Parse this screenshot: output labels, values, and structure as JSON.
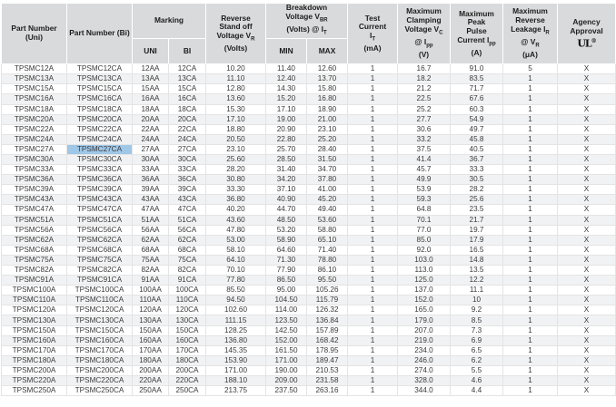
{
  "headers": {
    "part_uni": "Part Number (Uni)",
    "part_bi": "Part Number (Bi)",
    "marking": "Marking",
    "marking_uni": "UNI",
    "marking_bi": "BI",
    "reverse_standoff": [
      "Reverse",
      "Stand off",
      "Voltage V",
      "R",
      "(Volts)"
    ],
    "breakdown": [
      "Breakdown",
      "Voltage V",
      "BR",
      "(Volts) @ I",
      "T"
    ],
    "breakdown_min": "MIN",
    "breakdown_max": "MAX",
    "test_current": [
      "Test",
      "Current",
      "I",
      "T",
      "(mA)"
    ],
    "clamping": [
      "Maximum",
      "Clamping",
      "Voltage V",
      "C",
      "@ I",
      "pp",
      "(V)"
    ],
    "peak_pulse": [
      "Maximum",
      "Peak",
      "Pulse",
      "Current I",
      "pp",
      "(A)"
    ],
    "leakage": [
      "Maximum",
      "Reverse",
      "Leakage I",
      "R",
      "@ V",
      "R",
      "(μA)"
    ],
    "agency": "Agency Approval",
    "agency_logo": "UL",
    "agency_logo_mark": "®"
  },
  "highlighted_cell": "TPSMC27CA",
  "rows": [
    [
      "TPSMC12A",
      "TPSMC12CA",
      "12AA",
      "12CA",
      "10.20",
      "11.40",
      "12.60",
      "1",
      "16.7",
      "91.0",
      "5",
      "X"
    ],
    [
      "TPSMC13A",
      "TPSMC13CA",
      "13AA",
      "13CA",
      "11.10",
      "12.40",
      "13.70",
      "1",
      "18.2",
      "83.5",
      "1",
      "X"
    ],
    [
      "TPSMC15A",
      "TPSMC15CA",
      "15AA",
      "15CA",
      "12.80",
      "14.30",
      "15.80",
      "1",
      "21.2",
      "71.7",
      "1",
      "X"
    ],
    [
      "TPSMC16A",
      "TPSMC16CA",
      "16AA",
      "16CA",
      "13.60",
      "15.20",
      "16.80",
      "1",
      "22.5",
      "67.6",
      "1",
      "X"
    ],
    [
      "TPSMC18A",
      "TPSMC18CA",
      "18AA",
      "18CA",
      "15.30",
      "17.10",
      "18.90",
      "1",
      "25.2",
      "60.3",
      "1",
      "X"
    ],
    [
      "TPSMC20A",
      "TPSMC20CA",
      "20AA",
      "20CA",
      "17.10",
      "19.00",
      "21.00",
      "1",
      "27.7",
      "54.9",
      "1",
      "X"
    ],
    [
      "TPSMC22A",
      "TPSMC22CA",
      "22AA",
      "22CA",
      "18.80",
      "20.90",
      "23.10",
      "1",
      "30.6",
      "49.7",
      "1",
      "X"
    ],
    [
      "TPSMC24A",
      "TPSMC24CA",
      "24AA",
      "24CA",
      "20.50",
      "22.80",
      "25.20",
      "1",
      "33.2",
      "45.8",
      "1",
      "X"
    ],
    [
      "TPSMC27A",
      "TPSMC27CA",
      "27AA",
      "27CA",
      "23.10",
      "25.70",
      "28.40",
      "1",
      "37.5",
      "40.5",
      "1",
      "X"
    ],
    [
      "TPSMC30A",
      "TPSMC30CA",
      "30AA",
      "30CA",
      "25.60",
      "28.50",
      "31.50",
      "1",
      "41.4",
      "36.7",
      "1",
      "X"
    ],
    [
      "TPSMC33A",
      "TPSMC33CA",
      "33AA",
      "33CA",
      "28.20",
      "31.40",
      "34.70",
      "1",
      "45.7",
      "33.3",
      "1",
      "X"
    ],
    [
      "TPSMC36A",
      "TPSMC36CA",
      "36AA",
      "36CA",
      "30.80",
      "34.20",
      "37.80",
      "1",
      "49.9",
      "30.5",
      "1",
      "X"
    ],
    [
      "TPSMC39A",
      "TPSMC39CA",
      "39AA",
      "39CA",
      "33.30",
      "37.10",
      "41.00",
      "1",
      "53.9",
      "28.2",
      "1",
      "X"
    ],
    [
      "TPSMC43A",
      "TPSMC43CA",
      "43AA",
      "43CA",
      "36.80",
      "40.90",
      "45.20",
      "1",
      "59.3",
      "25.6",
      "1",
      "X"
    ],
    [
      "TPSMC47A",
      "TPSMC47CA",
      "47AA",
      "47CA",
      "40.20",
      "44.70",
      "49.40",
      "1",
      "64.8",
      "23.5",
      "1",
      "X"
    ],
    [
      "TPSMC51A",
      "TPSMC51CA",
      "51AA",
      "51CA",
      "43.60",
      "48.50",
      "53.60",
      "1",
      "70.1",
      "21.7",
      "1",
      "X"
    ],
    [
      "TPSMC56A",
      "TPSMC56CA",
      "56AA",
      "56CA",
      "47.80",
      "53.20",
      "58.80",
      "1",
      "77.0",
      "19.7",
      "1",
      "X"
    ],
    [
      "TPSMC62A",
      "TPSMC62CA",
      "62AA",
      "62CA",
      "53.00",
      "58.90",
      "65.10",
      "1",
      "85.0",
      "17.9",
      "1",
      "X"
    ],
    [
      "TPSMC68A",
      "TPSMC68CA",
      "68AA",
      "68CA",
      "58.10",
      "64.60",
      "71.40",
      "1",
      "92.0",
      "16.5",
      "1",
      "X"
    ],
    [
      "TPSMC75A",
      "TPSMC75CA",
      "75AA",
      "75CA",
      "64.10",
      "71.30",
      "78.80",
      "1",
      "103.0",
      "14.8",
      "1",
      "X"
    ],
    [
      "TPSMC82A",
      "TPSMC82CA",
      "82AA",
      "82CA",
      "70.10",
      "77.90",
      "86.10",
      "1",
      "113.0",
      "13.5",
      "1",
      "X"
    ],
    [
      "TPSMC91A",
      "TPSMC91CA",
      "91AA",
      "91CA",
      "77.80",
      "86.50",
      "95.50",
      "1",
      "125.0",
      "12.2",
      "1",
      "X"
    ],
    [
      "TPSMC100A",
      "TPSMC100CA",
      "100AA",
      "100CA",
      "85.50",
      "95.00",
      "105.26",
      "1",
      "137.0",
      "11.1",
      "1",
      "X"
    ],
    [
      "TPSMC110A",
      "TPSMC110CA",
      "110AA",
      "110CA",
      "94.50",
      "104.50",
      "115.79",
      "1",
      "152.0",
      "10",
      "1",
      "X"
    ],
    [
      "TPSMC120A",
      "TPSMC120CA",
      "120AA",
      "120CA",
      "102.60",
      "114.00",
      "126.32",
      "1",
      "165.0",
      "9.2",
      "1",
      "X"
    ],
    [
      "TPSMC130A",
      "TPSMC130CA",
      "130AA",
      "130CA",
      "111.15",
      "123.50",
      "136.84",
      "1",
      "179.0",
      "8.5",
      "1",
      "X"
    ],
    [
      "TPSMC150A",
      "TPSMC150CA",
      "150AA",
      "150CA",
      "128.25",
      "142.50",
      "157.89",
      "1",
      "207.0",
      "7.3",
      "1",
      "X"
    ],
    [
      "TPSMC160A",
      "TPSMC160CA",
      "160AA",
      "160CA",
      "136.80",
      "152.00",
      "168.42",
      "1",
      "219.0",
      "6.9",
      "1",
      "X"
    ],
    [
      "TPSMC170A",
      "TPSMC170CA",
      "170AA",
      "170CA",
      "145.35",
      "161.50",
      "178.95",
      "1",
      "234.0",
      "6.5",
      "1",
      "X"
    ],
    [
      "TPSMC180A",
      "TPSMC180CA",
      "180AA",
      "180CA",
      "153.90",
      "171.00",
      "189.47",
      "1",
      "246.0",
      "6.2",
      "1",
      "X"
    ],
    [
      "TPSMC200A",
      "TPSMC200CA",
      "200AA",
      "200CA",
      "171.00",
      "190.00",
      "210.53",
      "1",
      "274.0",
      "5.5",
      "1",
      "X"
    ],
    [
      "TPSMC220A",
      "TPSMC220CA",
      "220AA",
      "220CA",
      "188.10",
      "209.00",
      "231.58",
      "1",
      "328.0",
      "4.6",
      "1",
      "X"
    ],
    [
      "TPSMC250A",
      "TPSMC250CA",
      "250AA",
      "250CA",
      "213.75",
      "237.50",
      "263.16",
      "1",
      "344.0",
      "4.4",
      "1",
      "X"
    ]
  ]
}
